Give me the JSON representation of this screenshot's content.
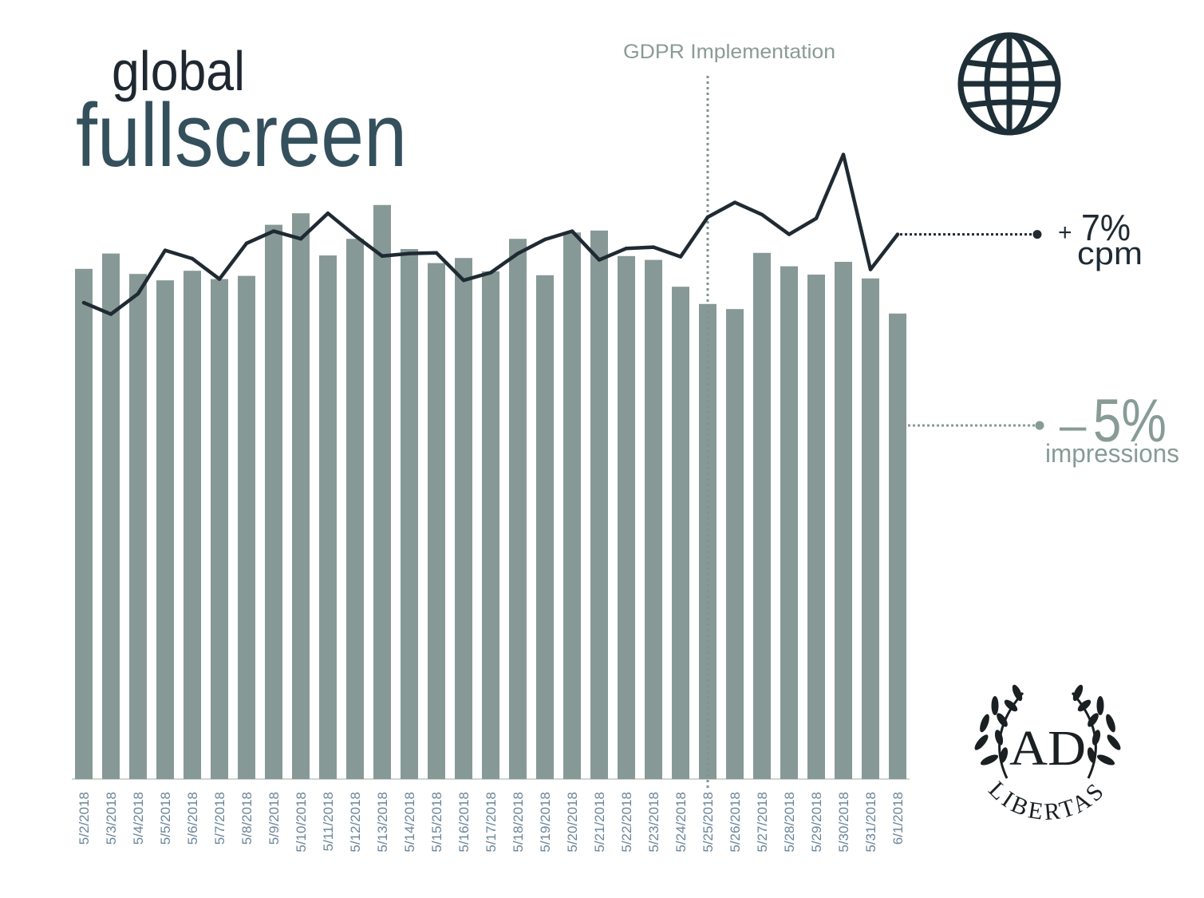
{
  "title": {
    "line1": "global",
    "line2": "fullscreen"
  },
  "logo": {
    "monogram": "AD",
    "wordmark": "LIBERTAS"
  },
  "icons": {
    "globe": "globe-icon",
    "laurel": "laurel-wreath-icon"
  },
  "colors": {
    "title_dark": "#1f2830",
    "title_teal": "#34505c",
    "bar": "#879996",
    "line": "#1f2a33",
    "annotation": "#8a9b97",
    "annotation_line": "#7e9490",
    "tick_label": "#6a8599",
    "axis": "#cfd6d4",
    "impressions_callout": "#879b97",
    "globe": "#1e2f38",
    "logo": "#1a1f22"
  },
  "chart_data": {
    "type": "bar",
    "categories": [
      "5/2/2018",
      "5/3/2018",
      "5/4/2018",
      "5/5/2018",
      "5/6/2018",
      "5/7/2018",
      "5/8/2018",
      "5/9/2018",
      "5/10/2018",
      "5/11/2018",
      "5/12/2018",
      "5/13/2018",
      "5/14/2018",
      "5/15/2018",
      "5/16/2018",
      "5/17/2018",
      "5/18/2018",
      "5/19/2018",
      "5/20/2018",
      "5/21/2018",
      "5/22/2018",
      "5/23/2018",
      "5/24/2018",
      "5/25/2018",
      "5/26/2018",
      "5/27/2018",
      "5/28/2018",
      "5/29/2018",
      "5/30/2018",
      "5/31/2018",
      "6/1/2018"
    ],
    "series": [
      {
        "name": "impressions",
        "type": "bar",
        "color": "#879996",
        "change": {
          "sign": "–",
          "value": "5%"
        },
        "values": [
          79.9,
          82.3,
          79.1,
          78.1,
          79.6,
          78.3,
          78.8,
          86.8,
          88.6,
          82.0,
          84.6,
          89.9,
          83.0,
          80.8,
          81.6,
          79.5,
          84.6,
          78.9,
          85.6,
          85.9,
          81.9,
          81.3,
          77.1,
          74.4,
          73.6,
          82.4,
          80.3,
          79.0,
          81.0,
          78.4,
          72.9
        ]
      },
      {
        "name": "cpm",
        "type": "line",
        "color": "#1f2a33",
        "change": {
          "sign": "+",
          "value": "7%"
        },
        "values": [
          74.6,
          72.8,
          76.0,
          82.8,
          81.5,
          78.3,
          83.9,
          85.8,
          84.6,
          88.6,
          85.1,
          81.9,
          82.3,
          82.4,
          78.1,
          79.3,
          82.3,
          84.5,
          85.8,
          81.3,
          83.1,
          83.3,
          81.8,
          88.0,
          90.3,
          88.4,
          85.3,
          87.8,
          97.8,
          79.8,
          85.3
        ]
      }
    ],
    "annotations": [
      {
        "x": "5/25/2018",
        "text": "GDPR Implementation"
      }
    ],
    "ylim": [
      0,
      100
    ],
    "y_axis_shown": false,
    "grid": false,
    "legend": "none"
  }
}
